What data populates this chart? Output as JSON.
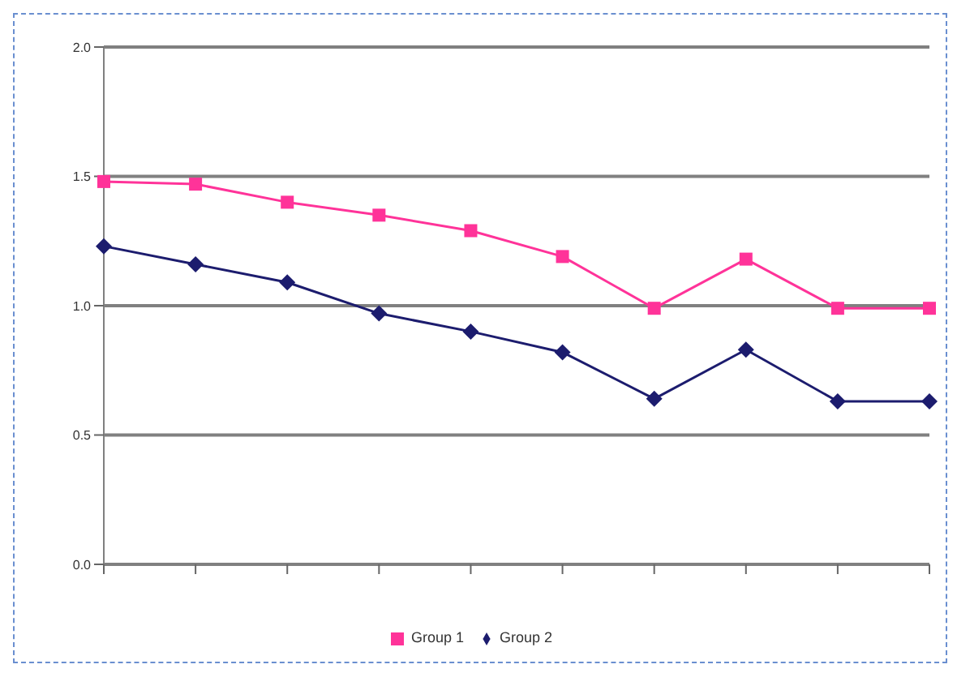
{
  "chart_data": {
    "type": "line",
    "categories": [
      null,
      null,
      null,
      null,
      null,
      null,
      null,
      null,
      null,
      null
    ],
    "series": [
      {
        "name": "Group 2",
        "color": "#1c1c6e",
        "marker": "diamond",
        "values": [
          1.23,
          1.16,
          1.09,
          0.97,
          0.9,
          0.82,
          0.64,
          0.83,
          0.63,
          0.63
        ]
      },
      {
        "name": "Group 1",
        "color": "#ff3399",
        "marker": "square",
        "values": [
          1.48,
          1.47,
          1.4,
          1.35,
          1.29,
          1.19,
          0.99,
          1.18,
          0.99,
          0.99
        ]
      }
    ],
    "ylim": [
      0,
      2
    ],
    "yticks": [
      {
        "value": 0,
        "label": "0.0"
      },
      0.5,
      {
        "value": 1,
        "label": "1.0"
      },
      1.5,
      {
        "value": 2,
        "label": "2.0"
      }
    ],
    "grid": "y",
    "legend": "bottom"
  }
}
